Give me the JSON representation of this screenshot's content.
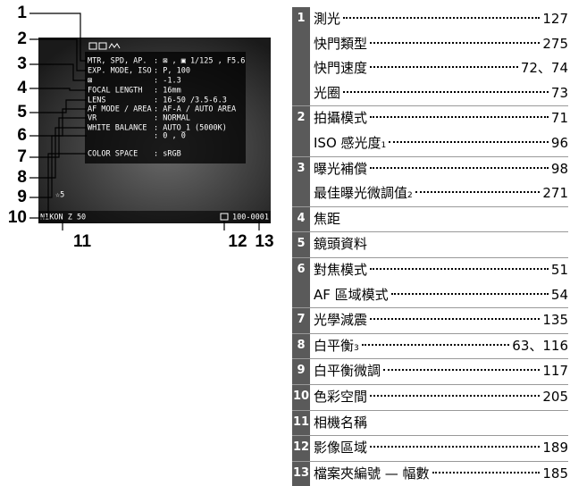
{
  "screen": {
    "rows": [
      {
        "label": "MTR, SPD, AP.",
        "value": ": ⊠ , ▣ 1/125  , F5.6"
      },
      {
        "label": "EXP. MODE, ISO",
        "value": ": P, 100"
      },
      {
        "label": "⊠",
        "value": ": -1.3"
      },
      {
        "label": "FOCAL LENGTH",
        "value": ": 16mm"
      },
      {
        "label": "LENS",
        "value": ": 16-50   /3.5-6.3"
      },
      {
        "label": "AF MODE / AREA",
        "value": ": AF-A / AUTO AREA"
      },
      {
        "label": "VR",
        "value": ": NORMAL"
      },
      {
        "label": "WHITE BALANCE",
        "value": ": AUTO_1 (5000K)"
      },
      {
        "label": "",
        "value": ": 0 , 0"
      },
      {
        "label": "COLOR SPACE",
        "value": ": sRGB"
      }
    ],
    "rating": "☆5",
    "camera": "NIKON Z 50",
    "file": "100-0001"
  },
  "callouts": [
    "1",
    "2",
    "3",
    "4",
    "5",
    "6",
    "7",
    "8",
    "9",
    "10",
    "11",
    "12",
    "13"
  ],
  "index": [
    {
      "number": "1",
      "entries": [
        {
          "label": "測光",
          "page": "127"
        },
        {
          "label": "快門類型",
          "page": "275"
        },
        {
          "label": "快門速度",
          "page": "72、74"
        },
        {
          "label": "光圈",
          "page": "73"
        }
      ]
    },
    {
      "number": "2",
      "entries": [
        {
          "label": "拍攝模式",
          "page": "71"
        },
        {
          "label": "ISO 感光度",
          "note": "1",
          "page": "96"
        }
      ]
    },
    {
      "number": "3",
      "entries": [
        {
          "label": "曝光補償",
          "page": "98"
        },
        {
          "label": "最佳曝光微調值",
          "note": "2",
          "page": "271"
        }
      ]
    },
    {
      "number": "4",
      "entries": [
        {
          "label": "焦距"
        }
      ]
    },
    {
      "number": "5",
      "entries": [
        {
          "label": "鏡頭資料"
        }
      ]
    },
    {
      "number": "6",
      "entries": [
        {
          "label": "對焦模式",
          "page": "51"
        },
        {
          "label": "AF 區域模式",
          "page": "54"
        }
      ]
    },
    {
      "number": "7",
      "entries": [
        {
          "label": "光學減震",
          "page": "135"
        }
      ]
    },
    {
      "number": "8",
      "entries": [
        {
          "label": "白平衡",
          "note": "3",
          "page": "63、116"
        }
      ]
    },
    {
      "number": "9",
      "entries": [
        {
          "label": "白平衡微調",
          "page": "117"
        }
      ]
    },
    {
      "number": "10",
      "entries": [
        {
          "label": "色彩空間",
          "page": "205"
        }
      ]
    },
    {
      "number": "11",
      "entries": [
        {
          "label": "相機名稱"
        }
      ]
    },
    {
      "number": "12",
      "entries": [
        {
          "label": "影像區域",
          "page": "189"
        }
      ]
    },
    {
      "number": "13",
      "entries": [
        {
          "label": "檔案夾編號 — 幅數",
          "page": "185"
        }
      ]
    }
  ]
}
